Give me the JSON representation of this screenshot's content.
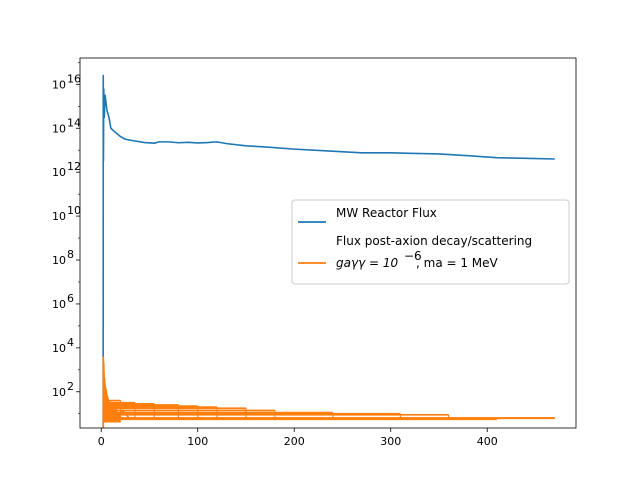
{
  "chart_data": {
    "type": "line",
    "title": "",
    "xlabel": "",
    "ylabel": "",
    "xscale": "linear",
    "yscale": "log",
    "xlim": [
      -22,
      492
    ],
    "ylim_log10": [
      0.35,
      17.2
    ],
    "grid": false,
    "legend_position": "center-right",
    "x_ticks": [
      {
        "value": 0,
        "label": "0"
      },
      {
        "value": 100,
        "label": "100"
      },
      {
        "value": 200,
        "label": "200"
      },
      {
        "value": 300,
        "label": "300"
      },
      {
        "value": 400,
        "label": "400"
      }
    ],
    "y_ticks": [
      {
        "exp": 2,
        "base": "10",
        "sup": "2"
      },
      {
        "exp": 4,
        "base": "10",
        "sup": "4"
      },
      {
        "exp": 6,
        "base": "10",
        "sup": "6"
      },
      {
        "exp": 8,
        "base": "10",
        "sup": "8"
      },
      {
        "exp": 10,
        "base": "10",
        "sup": "10"
      },
      {
        "exp": 12,
        "base": "10",
        "sup": "12"
      },
      {
        "exp": 14,
        "base": "10",
        "sup": "14"
      },
      {
        "exp": 16,
        "base": "10",
        "sup": "16"
      }
    ],
    "series": [
      {
        "name": "MW Reactor Flux",
        "color": "#1f77b4",
        "x": [
          2,
          2.1,
          2.3,
          2.6,
          3.2,
          4,
          6,
          8,
          10,
          15,
          20,
          25,
          35,
          45,
          55,
          60,
          70,
          80,
          90,
          100,
          110,
          120,
          130,
          150,
          170,
          200,
          230,
          270,
          300,
          320,
          350,
          380,
          410,
          440,
          470
        ],
        "log10y": [
          0.4,
          16.4,
          12.5,
          15.8,
          14.5,
          15.5,
          14.8,
          14.5,
          14.0,
          13.8,
          13.62,
          13.5,
          13.42,
          13.35,
          13.32,
          13.38,
          13.38,
          13.34,
          13.36,
          13.33,
          13.35,
          13.38,
          13.3,
          13.2,
          13.15,
          13.05,
          12.98,
          12.88,
          12.88,
          12.86,
          12.83,
          12.75,
          12.66,
          12.63,
          12.6
        ]
      },
      {
        "name": "Flux post-axion decay/scattering",
        "name_line2": "g_{aγγ}=10^{-6}, m_a=1 MeV",
        "color": "#ff7f0e",
        "x": [
          2,
          2.3,
          2.6,
          3,
          3.5,
          4,
          5,
          6,
          7,
          8,
          10,
          12,
          15,
          18,
          22,
          30
        ],
        "log10y": [
          3.5,
          3.6,
          3.3,
          3.0,
          2.6,
          2.3,
          2.0,
          1.8,
          1.6,
          1.5,
          1.4,
          1.3,
          1.25,
          1.2,
          1.15,
          1.1
        ],
        "plateau_level": 0.8,
        "steps": [
          {
            "x_end": 470,
            "log10y": 0.8
          },
          {
            "x_end": 410,
            "log10y": 0.75
          },
          {
            "x_end": 360,
            "log10y": 0.95
          },
          {
            "x_end": 310,
            "log10y": 1.0
          },
          {
            "x_end": 240,
            "log10y": 1.05
          },
          {
            "x_end": 180,
            "log10y": 1.15
          },
          {
            "x_end": 150,
            "log10y": 1.25
          },
          {
            "x_end": 120,
            "log10y": 1.3
          },
          {
            "x_end": 100,
            "log10y": 1.35
          },
          {
            "x_end": 80,
            "log10y": 1.4
          },
          {
            "x_end": 55,
            "log10y": 1.45
          },
          {
            "x_end": 35,
            "log10y": 1.5
          },
          {
            "x_end": 20,
            "log10y": 1.6
          }
        ]
      }
    ]
  },
  "legend": {
    "items": [
      {
        "label": "MW Reactor Flux",
        "color": "#1f77b4"
      },
      {
        "label": "Flux post-axion decay/scattering",
        "label_line2_plain": "gaγγ = 10",
        "label_line2_sup": "−6",
        "label_line2_rest": ", ma = 1 MeV",
        "color": "#ff7f0e"
      }
    ]
  }
}
